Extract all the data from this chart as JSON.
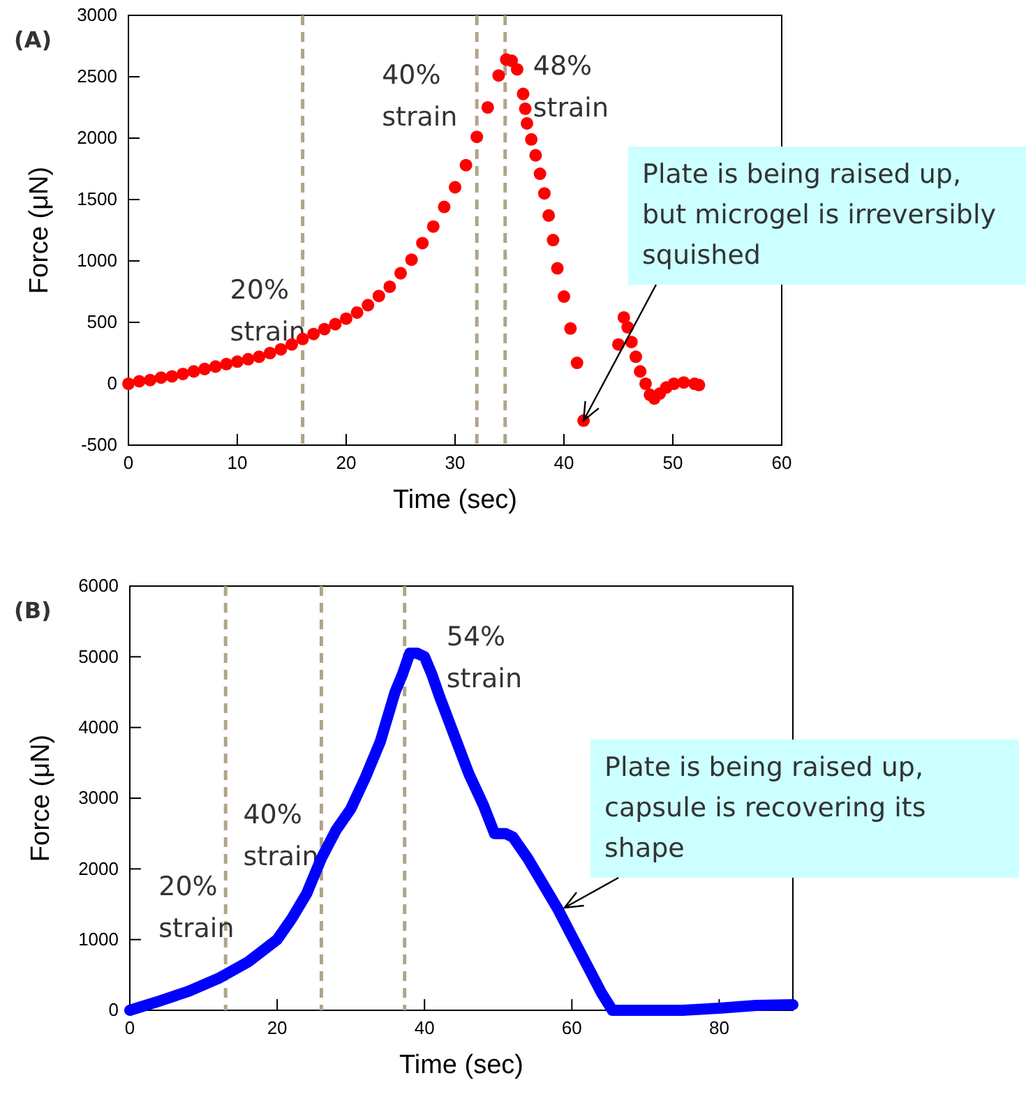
{
  "chart_data": [
    {
      "type": "scatter",
      "title": "(A)",
      "xlabel": "Time (sec)",
      "ylabel": "Force (μN)",
      "xlim": [
        0,
        60
      ],
      "xticks": [
        0,
        10,
        20,
        30,
        40,
        50,
        60
      ],
      "ylim": [
        -500,
        3000
      ],
      "yticks": [
        -500,
        0,
        500,
        1000,
        1500,
        2000,
        2500,
        3000
      ],
      "marker": "circle",
      "grid": false,
      "series": [
        {
          "color": "#ff0000",
          "x": [
            0,
            1,
            2,
            3,
            4,
            5,
            6,
            7,
            8,
            9,
            10,
            11,
            12,
            13,
            14,
            15,
            16,
            17,
            18,
            19,
            20,
            21,
            22,
            23,
            24,
            25,
            26,
            27,
            28,
            29,
            30,
            31,
            32,
            33,
            34,
            34.7,
            35.2,
            35.7,
            36.25,
            36.45,
            36.6,
            37.0,
            37.4,
            37.8,
            38.2,
            38.6,
            39.0,
            39.4,
            40.0,
            40.6,
            41.2,
            41.8,
            45.0,
            45.5,
            45.85,
            46.2,
            46.6,
            47.0,
            47.5,
            47.9,
            48.3,
            48.8,
            49.4,
            50.1,
            51,
            52,
            52.4
          ],
          "values": [
            0,
            20,
            30,
            50,
            60,
            80,
            100,
            120,
            140,
            160,
            180,
            200,
            220,
            250,
            280,
            320,
            365,
            405,
            445,
            485,
            530,
            580,
            640,
            715,
            790,
            900,
            1010,
            1145,
            1280,
            1440,
            1600,
            1780,
            2010,
            2250,
            2510,
            2640,
            2630,
            2560,
            2360,
            2240,
            2120,
            1990,
            1860,
            1710,
            1550,
            1370,
            1170,
            940,
            710,
            450,
            170,
            -300,
            320,
            540,
            460,
            340,
            220,
            100,
            0,
            -90,
            -120,
            -80,
            -30,
            0,
            10,
            0,
            -10
          ]
        }
      ],
      "ref_lines": [
        {
          "axis": "x",
          "value": 16,
          "label": "20% strain",
          "color": "#b0a58a",
          "line_style": "dashed"
        },
        {
          "axis": "x",
          "value": 32,
          "label": "40% strain",
          "color": "#b0a58a",
          "line_style": "dashed"
        },
        {
          "axis": "x",
          "value": 34.6,
          "label": "48% strain",
          "color": "#b0a58a",
          "line_style": "dashed"
        }
      ],
      "annotations": [
        {
          "text": "Plate is being raised up, but microgel is irreversibly squished",
          "x": 41.8,
          "y": -300
        }
      ]
    },
    {
      "type": "line",
      "title": "(B)",
      "xlabel": "Time (sec)",
      "ylabel": "Force (μN)",
      "xlim": [
        0,
        90
      ],
      "xticks": [
        0,
        20,
        40,
        60,
        80
      ],
      "ylim": [
        0,
        6000
      ],
      "yticks": [
        0,
        1000,
        2000,
        3000,
        4000,
        5000,
        6000
      ],
      "grid": false,
      "series": [
        {
          "color": "#0000ff",
          "x": [
            0,
            4,
            8,
            12,
            16,
            20,
            22,
            24,
            26,
            28,
            30,
            32,
            34,
            36,
            37,
            38,
            39,
            40,
            41,
            42,
            44,
            46,
            48,
            49.5,
            51,
            52,
            54,
            56,
            58,
            60,
            62,
            64,
            65.5,
            70,
            75,
            80,
            85,
            90
          ],
          "values": [
            0,
            130,
            270,
            450,
            680,
            1000,
            1300,
            1650,
            2150,
            2550,
            2850,
            3300,
            3800,
            4500,
            4750,
            5050,
            5050,
            5000,
            4750,
            4450,
            3900,
            3350,
            2900,
            2500,
            2500,
            2450,
            2150,
            1800,
            1450,
            1050,
            650,
            250,
            0,
            0,
            0,
            30,
            70,
            80
          ]
        }
      ],
      "ref_lines": [
        {
          "axis": "x",
          "value": 13,
          "label": "20% strain",
          "color": "#b0a58a",
          "line_style": "dashed"
        },
        {
          "axis": "x",
          "value": 26,
          "label": "40% strain",
          "color": "#b0a58a",
          "line_style": "dashed"
        },
        {
          "axis": "x",
          "value": 37.3,
          "label": "54% strain",
          "color": "#b0a58a",
          "line_style": "dashed"
        }
      ],
      "annotations": [
        {
          "text": "Plate is being raised up, capsule is  recovering its shape",
          "x": 59,
          "y": 1450
        }
      ]
    }
  ]
}
